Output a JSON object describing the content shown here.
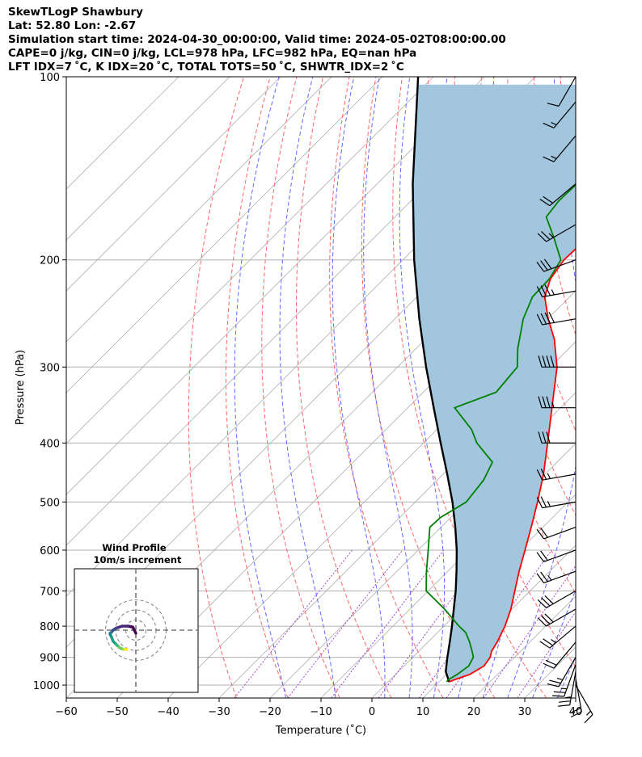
{
  "header": {
    "line1": "SkewTLogP Shawbury",
    "line2": "Lat: 52.80   Lon: -2.67",
    "line3": "Simulation start time: 2024-04-30_00:00:00, Valid time: 2024-05-02T08:00:00.00",
    "line4": "CAPE=0 j/kg, CIN=0 j/kg, LCL=978 hPa, LFC=982 hPa, EQ=nan hPa",
    "line5": "LFT IDX=7 ˚C, K IDX=20 ˚C, TOTAL TOTS=50 ˚C, SHWTR_IDX=2 ˚C"
  },
  "chart_data": {
    "type": "line",
    "title": "SkewTLogP Shawbury",
    "xlabel": "Temperature (˚C)",
    "ylabel": "Pressure (hPa)",
    "xlim": [
      -60,
      40
    ],
    "ylim": [
      1050,
      100
    ],
    "y_scale": "log",
    "skew": "isotherms skewed 45 degrees",
    "x_ticks": [
      -60,
      -50,
      -40,
      -30,
      -20,
      -10,
      0,
      10,
      20,
      30,
      40
    ],
    "x_tick_labels": [
      "−60",
      "−50",
      "−40",
      "−30",
      "−20",
      "−10",
      "0",
      "10",
      "20",
      "30",
      "40"
    ],
    "y_ticks": [
      1000,
      900,
      800,
      700,
      600,
      500,
      400,
      300,
      200,
      100
    ],
    "y_tick_labels": [
      "1000",
      "900",
      "800",
      "700",
      "600",
      "500",
      "400",
      "300",
      "200",
      "100"
    ],
    "grid": true,
    "colors": {
      "temperature": "#ff0000",
      "dewpoint": "#008000",
      "parcel": "#000000",
      "fill": "#a3c6df",
      "dry_adiabats": "#ff6666",
      "moist_adiabats": "#6666ff",
      "mixing_ratio": "#9933cc",
      "isotherms": "#aaaaaa"
    },
    "series": [
      {
        "key": "temperature",
        "p": [
          988,
          980,
          960,
          930,
          900,
          880,
          850,
          800,
          750,
          700,
          650,
          600,
          550,
          500,
          450,
          400,
          350,
          300,
          270,
          250,
          230,
          215,
          200,
          185,
          170,
          160,
          150,
          140,
          130,
          120,
          110,
          100
        ],
        "t": [
          12,
          12.6,
          14.6,
          15.7,
          15.2,
          14.3,
          13.6,
          12.0,
          9.8,
          7.0,
          4.0,
          1.0,
          -2.3,
          -6.0,
          -10.3,
          -15.6,
          -21.7,
          -28.7,
          -34.7,
          -39.9,
          -44.9,
          -47.3,
          -48.4,
          -48.1,
          -48.4,
          -48.8,
          -50.0,
          -51.2,
          -53.0,
          -54.2,
          -56.5,
          -57.5
        ]
      },
      {
        "key": "dewpoint",
        "p": [
          988,
          980,
          960,
          930,
          900,
          880,
          850,
          820,
          800,
          750,
          700,
          650,
          600,
          550,
          530,
          500,
          460,
          430,
          400,
          380,
          350,
          330,
          300,
          280,
          250,
          230,
          215,
          200,
          185,
          170,
          160,
          150,
          140,
          130,
          120,
          110,
          100
        ],
        "t": [
          11.5,
          11.4,
          12.1,
          12.7,
          11.9,
          10.5,
          8.2,
          5.6,
          3.0,
          -3.2,
          -10.4,
          -14.2,
          -18.0,
          -22.2,
          -22.0,
          -20.0,
          -20.9,
          -22.7,
          -29.5,
          -33.2,
          -40.8,
          -35.7,
          -36.5,
          -40.0,
          -44.8,
          -47.3,
          -47.5,
          -49.0,
          -54.3,
          -60.3,
          -61.0,
          -60.8,
          -60.0,
          -58.6,
          -57.0,
          -55.6,
          -54.0
        ]
      },
      {
        "key": "parcel",
        "p": [
          988,
          950,
          900,
          850,
          800,
          750,
          700,
          650,
          600,
          550,
          500,
          450,
          400,
          350,
          300,
          250,
          200,
          150,
          100
        ],
        "t": [
          12,
          9.3,
          6.8,
          4.3,
          1.6,
          -1.4,
          -4.6,
          -8.3,
          -12.4,
          -17.2,
          -22.7,
          -29.2,
          -36.6,
          -44.9,
          -54.4,
          -65.2,
          -77.8,
          -93.0,
          -113.0
        ]
      }
    ],
    "hodograph": {
      "title": "Wind Profile",
      "subtitle": "10m/s increment",
      "rings_ms": [
        10,
        20,
        30
      ],
      "u": [
        0,
        -2,
        -5,
        -9,
        -13,
        -15,
        -16,
        -17,
        -17,
        -16,
        -15,
        -13,
        -11,
        -10,
        -8,
        -7,
        -6,
        -7
      ],
      "v": [
        3,
        -3,
        -4,
        -4,
        -2,
        0,
        2,
        3,
        4,
        7,
        11,
        14,
        17,
        18,
        19,
        19,
        19,
        19
      ]
    },
    "wind_barbs": {
      "p": [
        1000,
        975,
        950,
        925,
        900,
        850,
        800,
        750,
        700,
        650,
        600,
        550,
        500,
        450,
        400,
        350,
        300,
        250,
        225,
        200,
        175,
        150,
        125,
        110,
        100
      ],
      "speed_kt": [
        15,
        20,
        25,
        25,
        25,
        20,
        25,
        30,
        30,
        25,
        20,
        20,
        25,
        25,
        30,
        35,
        40,
        40,
        35,
        30,
        25,
        20,
        15,
        15,
        10
      ],
      "dir_deg": [
        150,
        170,
        190,
        200,
        210,
        220,
        230,
        240,
        240,
        250,
        250,
        250,
        260,
        260,
        270,
        270,
        270,
        260,
        260,
        250,
        240,
        230,
        220,
        220,
        210
      ]
    }
  }
}
